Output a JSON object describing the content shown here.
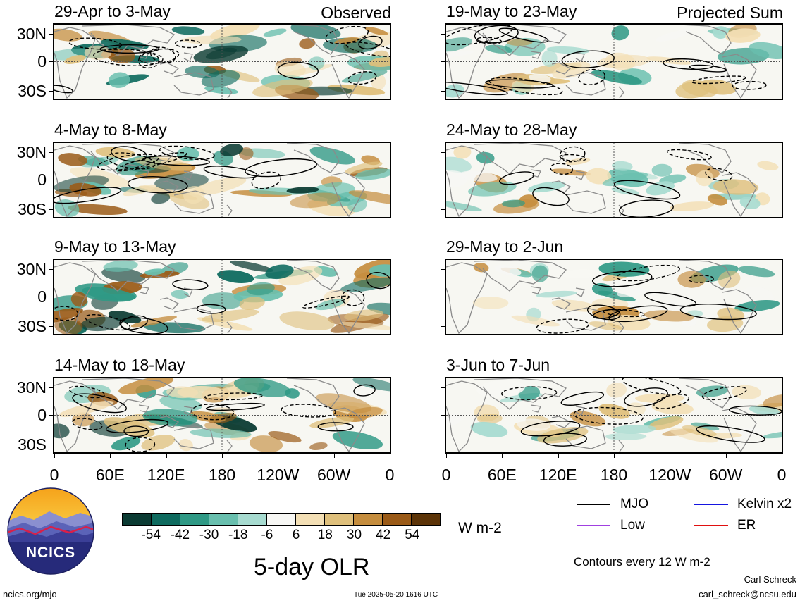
{
  "chart_data": {
    "type": "heatmap",
    "title": "5-day OLR",
    "units": "W m-2",
    "contour_note": "Contours every 12 W m-2",
    "column_labels": {
      "left": "Observed",
      "right": "Projected Sum"
    },
    "y_ticks": [
      "30N",
      "0",
      "30S"
    ],
    "x_ticks": [
      "0",
      "60E",
      "120E",
      "180",
      "120W",
      "60W",
      "0"
    ],
    "colorbar": {
      "labels": [
        "-54",
        "-42",
        "-30",
        "-18",
        "-6",
        "6",
        "18",
        "30",
        "42",
        "54"
      ],
      "colors": [
        "#0b3b33",
        "#0f6b5f",
        "#2f9985",
        "#69bfae",
        "#a7dbd0",
        "#f7f7f4",
        "#f3dfb5",
        "#dfc07c",
        "#c58d3e",
        "#9a5a17",
        "#5c3408"
      ]
    },
    "legend": [
      {
        "label": "MJO",
        "color": "#000000"
      },
      {
        "label": "Kelvin x2",
        "color": "#1515e0"
      },
      {
        "label": "Low",
        "color": "#a040e0"
      },
      {
        "label": "ER",
        "color": "#e01010"
      }
    ],
    "panels": [
      {
        "period": "29-Apr to 3-May",
        "column": "observed"
      },
      {
        "period": "4-May to 8-May",
        "column": "observed"
      },
      {
        "period": "9-May to 13-May",
        "column": "observed"
      },
      {
        "period": "14-May to 18-May",
        "column": "observed"
      },
      {
        "period": "19-May to 23-May",
        "column": "projected"
      },
      {
        "period": "24-May to 28-May",
        "column": "projected"
      },
      {
        "period": "29-May to 2-Jun",
        "column": "projected"
      },
      {
        "period": "3-Jun to 7-Jun",
        "column": "projected"
      }
    ]
  },
  "logo": {
    "text": "NCICS"
  },
  "footer": {
    "url": "ncics.org/mjo",
    "timestamp": "Tue 2025-05-20 1616 UTC",
    "author": "Carl Schreck",
    "email": "carl_schreck@ncsu.edu"
  }
}
